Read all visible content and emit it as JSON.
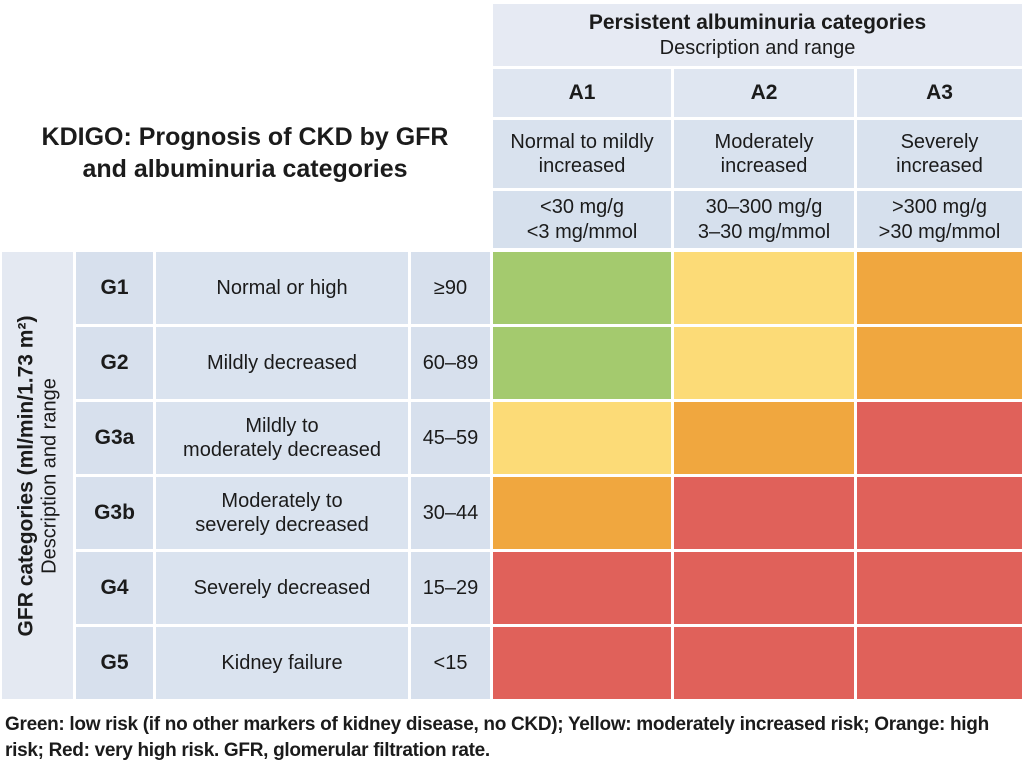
{
  "colors": {
    "green": "#a4ca6e",
    "yellow": "#fcdb77",
    "orange": "#f0a73f",
    "red": "#e0615a"
  },
  "chart_data": {
    "type": "heatmap",
    "title": "KDIGO: Prognosis of CKD by GFR\nand albuminuria categories",
    "column_axis": {
      "title": "Persistent albuminuria categories",
      "subtitle": "Description and range"
    },
    "row_axis": {
      "title": "GFR categories (ml/min/1.73 m²)",
      "subtitle": "Description and range"
    },
    "columns": [
      {
        "code": "A1",
        "description": "Normal to mildly\nincreased",
        "range": "<30 mg/g\n<3 mg/mmol"
      },
      {
        "code": "A2",
        "description": "Moderately\nincreased",
        "range": "30–300 mg/g\n3–30 mg/mmol"
      },
      {
        "code": "A3",
        "description": "Severely\nincreased",
        "range": ">300 mg/g\n>30 mg/mmol"
      }
    ],
    "rows": [
      {
        "code": "G1",
        "description": "Normal or high",
        "range": "≥90",
        "risks": [
          "green",
          "yellow",
          "orange"
        ]
      },
      {
        "code": "G2",
        "description": "Mildly decreased",
        "range": "60–89",
        "risks": [
          "green",
          "yellow",
          "orange"
        ]
      },
      {
        "code": "G3a",
        "description": "Mildly to\nmoderately decreased",
        "range": "45–59",
        "risks": [
          "yellow",
          "orange",
          "red"
        ]
      },
      {
        "code": "G3b",
        "description": "Moderately to\nseverely decreased",
        "range": "30–44",
        "risks": [
          "orange",
          "red",
          "red"
        ]
      },
      {
        "code": "G4",
        "description": "Severely decreased",
        "range": "15–29",
        "risks": [
          "red",
          "red",
          "red"
        ]
      },
      {
        "code": "G5",
        "description": "Kidney failure",
        "range": "<15",
        "risks": [
          "red",
          "red",
          "red"
        ]
      }
    ],
    "footnote": "Green: low risk (if no other markers of kidney disease, no CKD); Yellow: moderately increased risk; Orange: high risk; Red: very high risk. GFR, glomerular filtration rate."
  }
}
